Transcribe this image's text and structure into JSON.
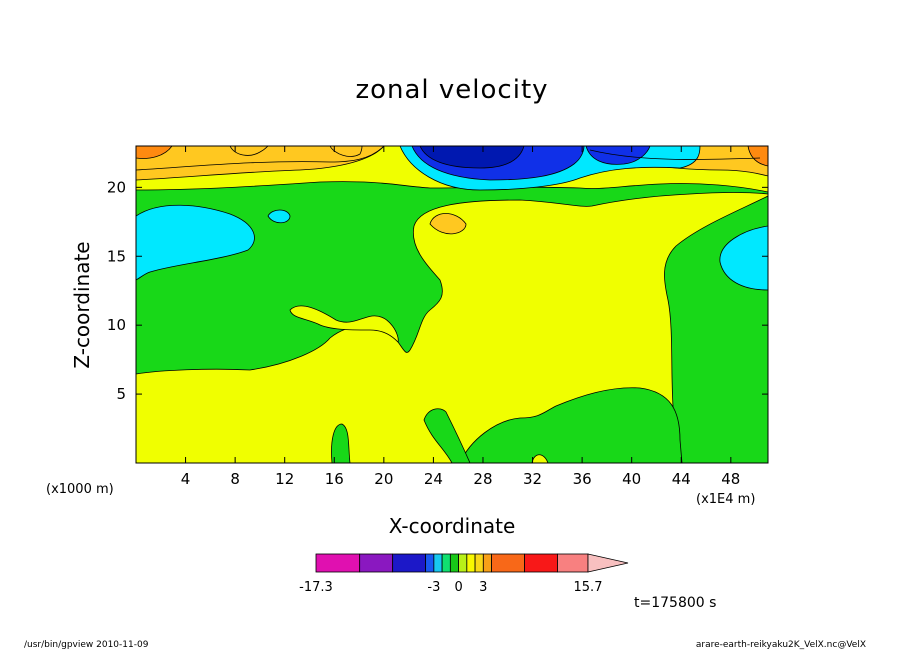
{
  "chart_data": {
    "type": "contour",
    "title": "zonal velocity",
    "xlabel": "X-coordinate",
    "ylabel": "Z-coordinate",
    "x_unit_label": "(x1E4 m)",
    "y_unit_label": "(x1000 m)",
    "xlim": [
      0,
      51
    ],
    "ylim": [
      0,
      23
    ],
    "x_ticks": [
      4,
      8,
      12,
      16,
      20,
      24,
      28,
      32,
      36,
      40,
      44,
      48
    ],
    "y_ticks": [
      5,
      10,
      15,
      20
    ],
    "time_label": "t=175800 s",
    "colorbar": {
      "labels": [
        {
          "text": "-17.3",
          "value": -17.3
        },
        {
          "text": "-3",
          "value": -3
        },
        {
          "text": "0",
          "value": 0
        },
        {
          "text": "3",
          "value": 3
        },
        {
          "text": "15.7",
          "value": 15.7
        }
      ],
      "levels": [
        -17.3,
        -12,
        -8,
        -4,
        -3,
        -2,
        -1,
        0,
        1,
        2,
        3,
        4,
        8,
        12,
        15.7
      ],
      "colors": [
        "#e010b0",
        "#8a18c0",
        "#1c18c8",
        "#1858f0",
        "#18c8f0",
        "#10e070",
        "#18c818",
        "#b8f018",
        "#f8f800",
        "#f8d818",
        "#f8a018",
        "#f86818",
        "#f81818",
        "#f88080"
      ],
      "extend_color": "#f8c0c0"
    },
    "field_colors": {
      "yellow": "#f0ff00",
      "green": "#18d818",
      "cyan": "#00e8ff",
      "blue": "#1030e8",
      "navy": "#0018b0",
      "gold": "#ffc820",
      "orange": "#ff8a10"
    }
  },
  "footer": {
    "left": "/usr/bin/gpview   2010-11-09",
    "right": "arare-earth-reikyaku2K_VelX.nc@VelX"
  }
}
